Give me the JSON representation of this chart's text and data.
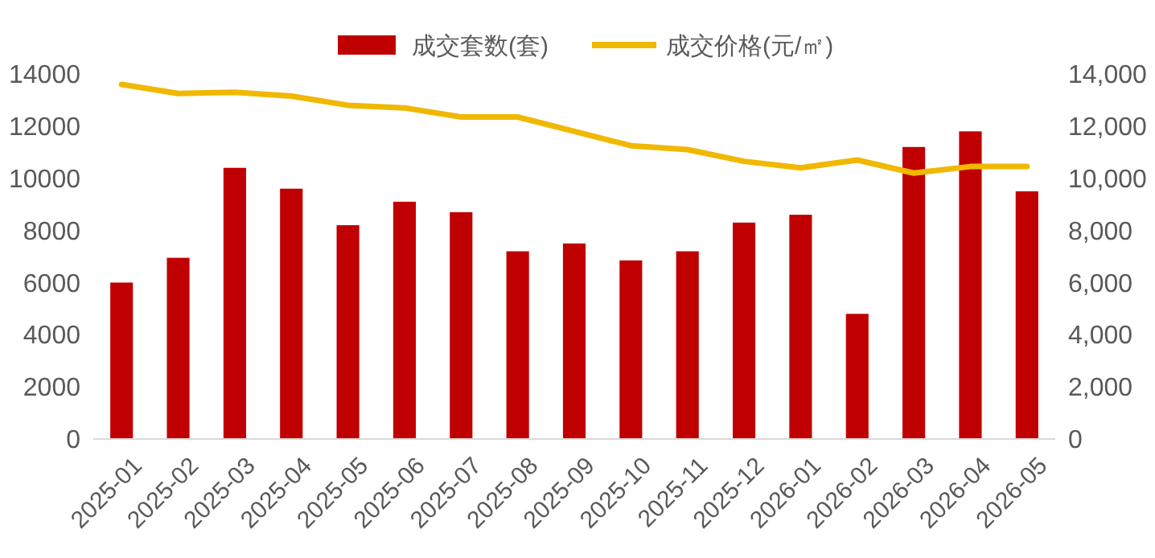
{
  "chart_data": {
    "type": "bar",
    "categories": [
      "2025-01",
      "2025-02",
      "2025-03",
      "2025-04",
      "2025-05",
      "2025-06",
      "2025-07",
      "2025-08",
      "2025-09",
      "2025-10",
      "2025-11",
      "2025-12",
      "2026-01",
      "2026-02",
      "2026-03",
      "2026-04",
      "2026-05"
    ],
    "series": [
      {
        "name": "成交套数(套)",
        "color": "#c00000",
        "values": [
          6000,
          6950,
          10400,
          9600,
          8200,
          9100,
          8700,
          7200,
          7500,
          6850,
          7200,
          8300,
          8600,
          4800,
          11200,
          11800,
          9500
        ]
      },
      {
        "name": "成交价格(元/㎡)",
        "type": "line",
        "axis": "y2",
        "color": "#f0b800",
        "values": [
          13600,
          13250,
          13300,
          13150,
          12800,
          12700,
          12350,
          12350,
          11800,
          11250,
          11100,
          10650,
          10400,
          10700,
          10200,
          10450,
          10450
        ]
      }
    ],
    "ylim": [
      0,
      14000
    ],
    "yticks": [
      0,
      2000,
      4000,
      6000,
      8000,
      10000,
      12000,
      14000
    ],
    "y2lim": [
      0,
      14000
    ],
    "y2ticks": [
      {
        "value": 0,
        "label": "0"
      },
      {
        "value": 2000,
        "label": "2,000"
      },
      {
        "value": 4000,
        "label": "4,000"
      },
      {
        "value": 6000,
        "label": "6,000"
      },
      {
        "value": 8000,
        "label": "8,000"
      },
      {
        "value": 10000,
        "label": "10,000"
      },
      {
        "value": 12000,
        "label": "12,000"
      },
      {
        "value": 14000,
        "label": "14,000"
      }
    ],
    "legend": "top",
    "grid": false
  }
}
